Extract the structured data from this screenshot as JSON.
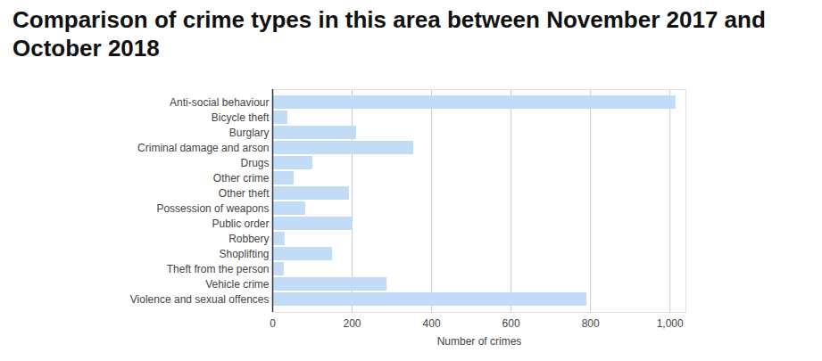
{
  "chart_data": {
    "type": "bar",
    "orientation": "horizontal",
    "title": "Comparison of crime types in this area between November 2017 and October 2018",
    "categories": [
      "Anti-social behaviour",
      "Bicycle theft",
      "Burglary",
      "Criminal damage and arson",
      "Drugs",
      "Other crime",
      "Other theft",
      "Possession of weapons",
      "Public order",
      "Robbery",
      "Shoplifting",
      "Theft from the person",
      "Vehicle crime",
      "Violence and sexual offences"
    ],
    "values": [
      1015,
      38,
      211,
      355,
      101,
      54,
      193,
      83,
      202,
      31,
      151,
      29,
      288,
      791
    ],
    "color": "#c2dcf8",
    "xlabel": "Number of crimes",
    "xlim": [
      0,
      1040
    ],
    "xticks": [
      0,
      200,
      400,
      600,
      800,
      1000
    ],
    "grid": true
  }
}
